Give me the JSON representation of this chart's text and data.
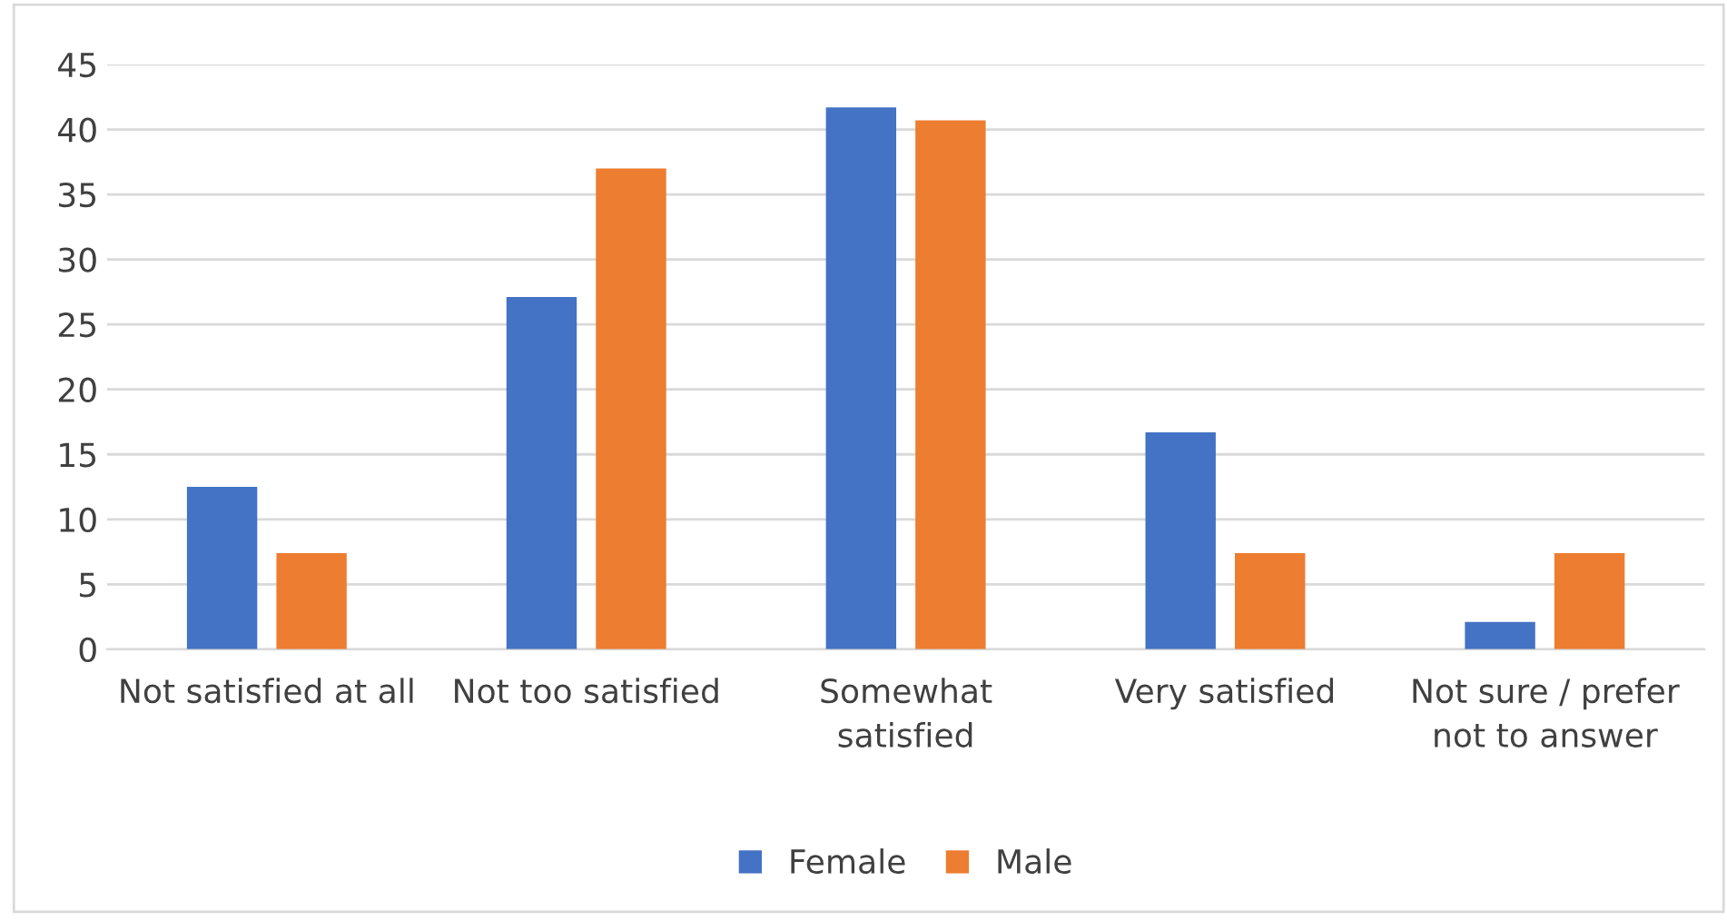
{
  "chart_data": {
    "type": "bar",
    "categories": [
      "Not satisfied at all",
      "Not too satisfied",
      "Somewhat satisfied",
      "Very satisfied",
      "Not sure / prefer not to answer"
    ],
    "series": [
      {
        "name": "Female",
        "color": "#4472c4",
        "values": [
          12.5,
          27.1,
          41.7,
          16.7,
          2.1
        ]
      },
      {
        "name": "Male",
        "color": "#ed7d31",
        "values": [
          7.4,
          37.0,
          40.7,
          7.4,
          7.4
        ]
      }
    ],
    "ylim": [
      0,
      45
    ],
    "yticks": [
      0,
      5,
      10,
      15,
      20,
      25,
      30,
      35,
      40,
      45
    ],
    "grid": "y",
    "legend": "bottom"
  }
}
